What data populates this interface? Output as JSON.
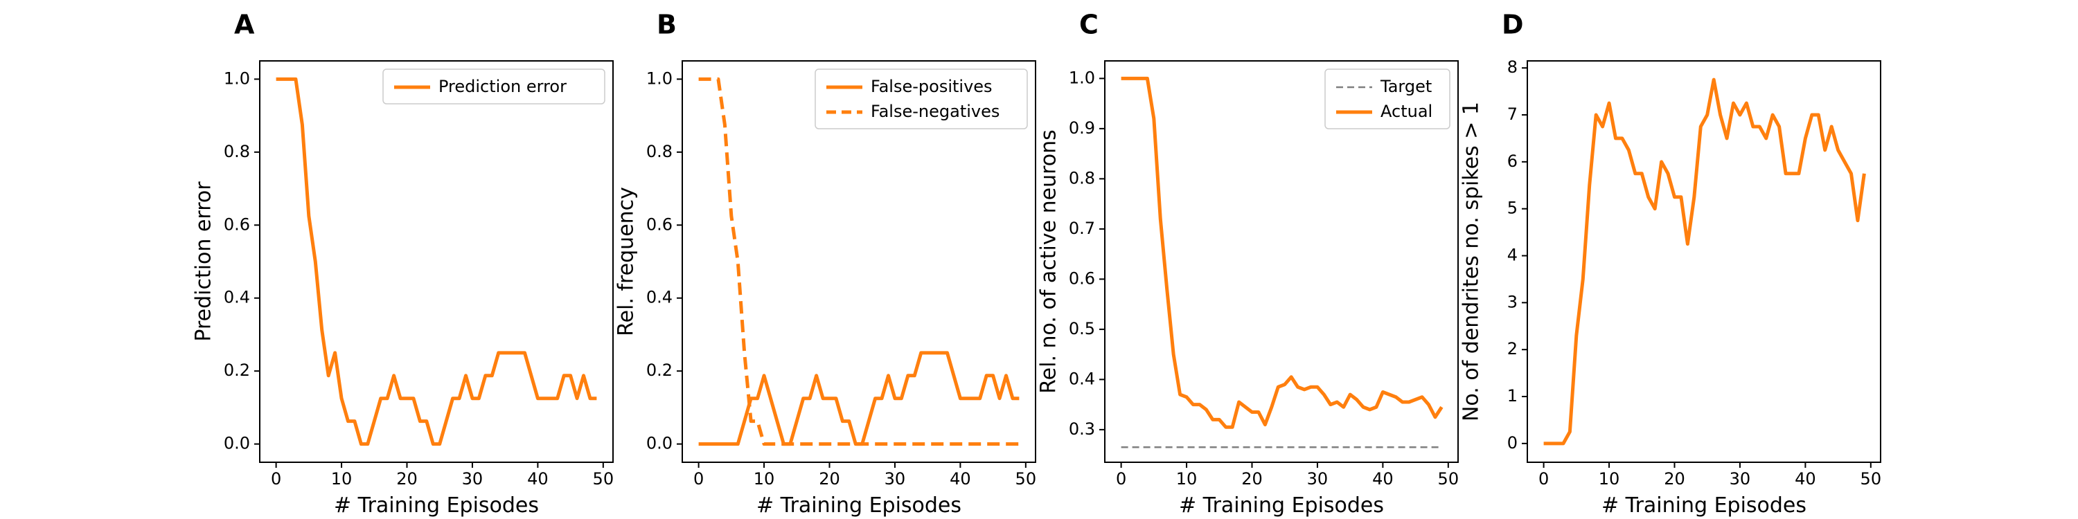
{
  "chart_data": [
    {
      "panel": "A",
      "type": "line",
      "xlabel": "# Training Episodes",
      "ylabel": "Prediction error",
      "xlim": [
        -2.5,
        51.5
      ],
      "ylim": [
        -0.05,
        1.05
      ],
      "xticks": [
        0,
        10,
        20,
        30,
        40,
        50
      ],
      "yticks": [
        0.0,
        0.2,
        0.4,
        0.6,
        0.8,
        1.0
      ],
      "ytick_labels": [
        "0.0",
        "0.2",
        "0.4",
        "0.6",
        "0.8",
        "1.0"
      ],
      "legend": "top-right",
      "series": [
        {
          "name": "Prediction error",
          "color": "#ff7f0e",
          "style": "solid",
          "x": [
            0,
            1,
            2,
            3,
            4,
            5,
            6,
            7,
            8,
            9,
            10,
            11,
            12,
            13,
            14,
            15,
            16,
            17,
            18,
            19,
            20,
            21,
            22,
            23,
            24,
            25,
            26,
            27,
            28,
            29,
            30,
            31,
            32,
            33,
            34,
            35,
            36,
            37,
            38,
            39,
            40,
            41,
            42,
            43,
            44,
            45,
            46,
            47,
            48,
            49
          ],
          "y": [
            1.0,
            1.0,
            1.0,
            1.0,
            0.875,
            0.625,
            0.5,
            0.3125,
            0.1875,
            0.25,
            0.125,
            0.0625,
            0.0625,
            0.0,
            0.0,
            0.0625,
            0.125,
            0.125,
            0.1875,
            0.125,
            0.125,
            0.125,
            0.0625,
            0.0625,
            0.0,
            0.0,
            0.0625,
            0.125,
            0.125,
            0.1875,
            0.125,
            0.125,
            0.1875,
            0.1875,
            0.25,
            0.25,
            0.25,
            0.25,
            0.25,
            0.1875,
            0.125,
            0.125,
            0.125,
            0.125,
            0.1875,
            0.1875,
            0.125,
            0.1875,
            0.125,
            0.125
          ]
        }
      ]
    },
    {
      "panel": "B",
      "type": "line",
      "xlabel": "# Training Episodes",
      "ylabel": "Rel. frequency",
      "xlim": [
        -2.5,
        51.5
      ],
      "ylim": [
        -0.05,
        1.05
      ],
      "xticks": [
        0,
        10,
        20,
        30,
        40,
        50
      ],
      "yticks": [
        0.0,
        0.2,
        0.4,
        0.6,
        0.8,
        1.0
      ],
      "ytick_labels": [
        "0.0",
        "0.2",
        "0.4",
        "0.6",
        "0.8",
        "1.0"
      ],
      "legend": "top-right",
      "series": [
        {
          "name": "False-positives",
          "color": "#ff7f0e",
          "style": "solid",
          "x": [
            0,
            1,
            2,
            3,
            4,
            5,
            6,
            7,
            8,
            9,
            10,
            11,
            12,
            13,
            14,
            15,
            16,
            17,
            18,
            19,
            20,
            21,
            22,
            23,
            24,
            25,
            26,
            27,
            28,
            29,
            30,
            31,
            32,
            33,
            34,
            35,
            36,
            37,
            38,
            39,
            40,
            41,
            42,
            43,
            44,
            45,
            46,
            47,
            48,
            49
          ],
          "y": [
            0.0,
            0.0,
            0.0,
            0.0,
            0.0,
            0.0,
            0.0,
            0.0625,
            0.125,
            0.125,
            0.1875,
            0.125,
            0.0625,
            0.0,
            0.0,
            0.0625,
            0.125,
            0.125,
            0.1875,
            0.125,
            0.125,
            0.125,
            0.0625,
            0.0625,
            0.0,
            0.0,
            0.0625,
            0.125,
            0.125,
            0.1875,
            0.125,
            0.125,
            0.1875,
            0.1875,
            0.25,
            0.25,
            0.25,
            0.25,
            0.25,
            0.1875,
            0.125,
            0.125,
            0.125,
            0.125,
            0.1875,
            0.1875,
            0.125,
            0.1875,
            0.125,
            0.125
          ]
        },
        {
          "name": "False-negatives",
          "color": "#ff7f0e",
          "style": "dashed",
          "x": [
            0,
            1,
            2,
            3,
            4,
            5,
            6,
            7,
            8,
            9,
            10,
            11,
            12,
            13,
            14,
            15,
            16,
            17,
            18,
            19,
            20,
            21,
            22,
            23,
            24,
            25,
            26,
            27,
            28,
            29,
            30,
            31,
            32,
            33,
            34,
            35,
            36,
            37,
            38,
            39,
            40,
            41,
            42,
            43,
            44,
            45,
            46,
            47,
            48,
            49
          ],
          "y": [
            1.0,
            1.0,
            1.0,
            1.0,
            0.875,
            0.625,
            0.5,
            0.25,
            0.0625,
            0.0625,
            0.0,
            0.0,
            0.0,
            0.0,
            0.0,
            0.0,
            0.0,
            0.0,
            0.0,
            0.0,
            0.0,
            0.0,
            0.0,
            0.0,
            0.0,
            0.0,
            0.0,
            0.0,
            0.0,
            0.0,
            0.0,
            0.0,
            0.0,
            0.0,
            0.0,
            0.0,
            0.0,
            0.0,
            0.0,
            0.0,
            0.0,
            0.0,
            0.0,
            0.0,
            0.0,
            0.0,
            0.0,
            0.0,
            0.0,
            0.0
          ]
        }
      ]
    },
    {
      "panel": "C",
      "type": "line",
      "xlabel": "# Training Episodes",
      "ylabel": "Rel. no. of active neurons",
      "xlim": [
        -2.5,
        51.5
      ],
      "ylim": [
        0.235,
        1.035
      ],
      "xticks": [
        0,
        10,
        20,
        30,
        40,
        50
      ],
      "yticks": [
        0.3,
        0.4,
        0.5,
        0.6,
        0.7,
        0.8,
        0.9,
        1.0
      ],
      "ytick_labels": [
        "0.3",
        "0.4",
        "0.5",
        "0.6",
        "0.7",
        "0.8",
        "0.9",
        "1.0"
      ],
      "legend": "top-right",
      "series": [
        {
          "name": "Target",
          "color": "#7f7f7f",
          "style": "dashed",
          "x": [
            0,
            49
          ],
          "y": [
            0.265,
            0.265
          ]
        },
        {
          "name": "Actual",
          "color": "#ff7f0e",
          "style": "solid",
          "x": [
            0,
            1,
            2,
            3,
            4,
            5,
            6,
            7,
            8,
            9,
            10,
            11,
            12,
            13,
            14,
            15,
            16,
            17,
            18,
            19,
            20,
            21,
            22,
            23,
            24,
            25,
            26,
            27,
            28,
            29,
            30,
            31,
            32,
            33,
            34,
            35,
            36,
            37,
            38,
            39,
            40,
            41,
            42,
            43,
            44,
            45,
            46,
            47,
            48,
            49
          ],
          "y": [
            1.0,
            1.0,
            1.0,
            1.0,
            1.0,
            0.92,
            0.72,
            0.58,
            0.45,
            0.37,
            0.365,
            0.35,
            0.35,
            0.34,
            0.32,
            0.32,
            0.305,
            0.305,
            0.355,
            0.345,
            0.335,
            0.335,
            0.31,
            0.345,
            0.385,
            0.39,
            0.405,
            0.385,
            0.38,
            0.385,
            0.385,
            0.37,
            0.35,
            0.355,
            0.345,
            0.37,
            0.36,
            0.345,
            0.34,
            0.345,
            0.375,
            0.37,
            0.365,
            0.355,
            0.355,
            0.36,
            0.365,
            0.35,
            0.325,
            0.345
          ]
        }
      ]
    },
    {
      "panel": "D",
      "type": "line",
      "xlabel": "# Training Episodes",
      "ylabel": "No. of dendrites no. spikes > 1",
      "xlim": [
        -2.5,
        51.5
      ],
      "ylim": [
        -0.4,
        8.15
      ],
      "xticks": [
        0,
        10,
        20,
        30,
        40,
        50
      ],
      "yticks": [
        0,
        1,
        2,
        3,
        4,
        5,
        6,
        7,
        8
      ],
      "ytick_labels": [
        "0",
        "1",
        "2",
        "3",
        "4",
        "5",
        "6",
        "7",
        "8"
      ],
      "legend": "none",
      "series": [
        {
          "color": "#ff7f0e",
          "style": "solid",
          "x": [
            0,
            1,
            2,
            3,
            4,
            5,
            6,
            7,
            8,
            9,
            10,
            11,
            12,
            13,
            14,
            15,
            16,
            17,
            18,
            19,
            20,
            21,
            22,
            23,
            24,
            25,
            26,
            27,
            28,
            29,
            30,
            31,
            32,
            33,
            34,
            35,
            36,
            37,
            38,
            39,
            40,
            41,
            42,
            43,
            44,
            45,
            46,
            47,
            48,
            49
          ],
          "y": [
            0.0,
            0.0,
            0.0,
            0.0,
            0.25,
            2.3,
            3.5,
            5.5,
            7.0,
            6.75,
            7.25,
            6.5,
            6.5,
            6.25,
            5.75,
            5.75,
            5.25,
            5.0,
            6.0,
            5.75,
            5.25,
            5.25,
            4.25,
            5.25,
            6.75,
            7.0,
            7.75,
            7.0,
            6.5,
            7.25,
            7.0,
            7.25,
            6.75,
            6.75,
            6.5,
            7.0,
            6.75,
            5.75,
            5.75,
            5.75,
            6.5,
            7.0,
            7.0,
            6.25,
            6.75,
            6.25,
            6.0,
            5.75,
            4.75,
            5.75
          ]
        }
      ]
    }
  ]
}
